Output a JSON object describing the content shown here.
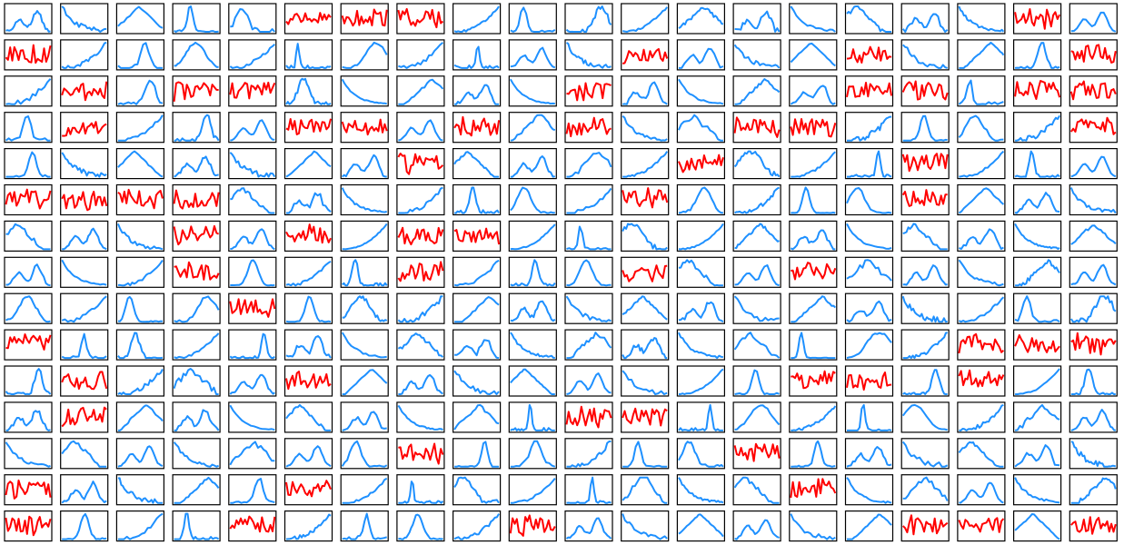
{
  "colors": {
    "normal": "#1E90FF",
    "flagged": "#FF0000",
    "frame": "#000000"
  },
  "chart_data": {
    "type": "line",
    "layout": "small-multiples",
    "rows": 15,
    "cols": 20,
    "axes": "hidden",
    "grid": false,
    "legend": "none",
    "flagged_panels": [
      [
        0,
        5
      ],
      [
        0,
        6
      ],
      [
        0,
        7
      ],
      [
        0,
        18
      ],
      [
        1,
        0
      ],
      [
        1,
        11
      ],
      [
        1,
        15
      ],
      [
        1,
        19
      ],
      [
        2,
        1
      ],
      [
        2,
        3
      ],
      [
        2,
        4
      ],
      [
        2,
        10
      ],
      [
        2,
        15
      ],
      [
        2,
        16
      ],
      [
        2,
        18
      ],
      [
        2,
        19
      ],
      [
        3,
        1
      ],
      [
        3,
        5
      ],
      [
        3,
        6
      ],
      [
        3,
        8
      ],
      [
        3,
        10
      ],
      [
        3,
        13
      ],
      [
        3,
        14
      ],
      [
        3,
        19
      ],
      [
        4,
        7
      ],
      [
        4,
        12
      ],
      [
        4,
        16
      ],
      [
        5,
        0
      ],
      [
        5,
        1
      ],
      [
        5,
        2
      ],
      [
        5,
        3
      ],
      [
        5,
        11
      ],
      [
        5,
        16
      ],
      [
        6,
        3
      ],
      [
        6,
        5
      ],
      [
        6,
        7
      ],
      [
        6,
        8
      ],
      [
        7,
        3
      ],
      [
        7,
        7
      ],
      [
        7,
        11
      ],
      [
        7,
        14
      ],
      [
        8,
        4
      ],
      [
        9,
        0
      ],
      [
        9,
        17
      ],
      [
        9,
        18
      ],
      [
        9,
        19
      ],
      [
        10,
        1
      ],
      [
        10,
        5
      ],
      [
        10,
        14
      ],
      [
        10,
        15
      ],
      [
        10,
        17
      ],
      [
        11,
        1
      ],
      [
        11,
        10
      ],
      [
        11,
        11
      ],
      [
        12,
        7
      ],
      [
        12,
        13
      ],
      [
        13,
        0
      ],
      [
        13,
        5
      ],
      [
        13,
        14
      ],
      [
        14,
        0
      ],
      [
        14,
        4
      ],
      [
        14,
        9
      ],
      [
        14,
        16
      ],
      [
        14,
        17
      ],
      [
        14,
        19
      ]
    ]
  }
}
